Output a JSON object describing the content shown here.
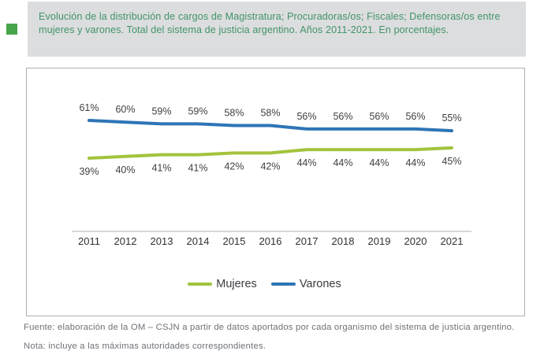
{
  "header": {
    "title": "Evolución de la distribución de cargos de Magistratura; Procuradoras/os; Fiscales; Defensoras/os entre mujeres y varones. Total del sistema de justicia argentino. Años 2011-2021. En porcentajes.",
    "bullet_color": "#47a44b",
    "title_color": "#41946a",
    "box_bg": "#dcddde"
  },
  "chart_data": {
    "type": "line",
    "categories": [
      "2011",
      "2012",
      "2013",
      "2014",
      "2015",
      "2016",
      "2017",
      "2018",
      "2019",
      "2020",
      "2021"
    ],
    "series": [
      {
        "name": "Mujeres",
        "color": "#a2c33c",
        "label_position": "below",
        "values": [
          39,
          40,
          41,
          41,
          42,
          42,
          44,
          44,
          44,
          44,
          45
        ]
      },
      {
        "name": "Varones",
        "color": "#2e75b6",
        "label_position": "above",
        "values": [
          61,
          60,
          59,
          59,
          58,
          58,
          56,
          56,
          56,
          56,
          55
        ]
      }
    ],
    "unit": "%",
    "ylim": [
      35,
      65
    ],
    "grid": false,
    "data_labels": true,
    "legend_position": "bottom",
    "axis_color": "#c9cacb",
    "label_color": "#3d3f42",
    "tick_color": "#303234"
  },
  "footer": {
    "fuente": "Fuente: elaboración de la OM – CSJN a partir de datos aportados por cada organismo del sistema de justicia argentino.",
    "nota": "Nota: incluye a las máximas autoridades correspondientes."
  }
}
